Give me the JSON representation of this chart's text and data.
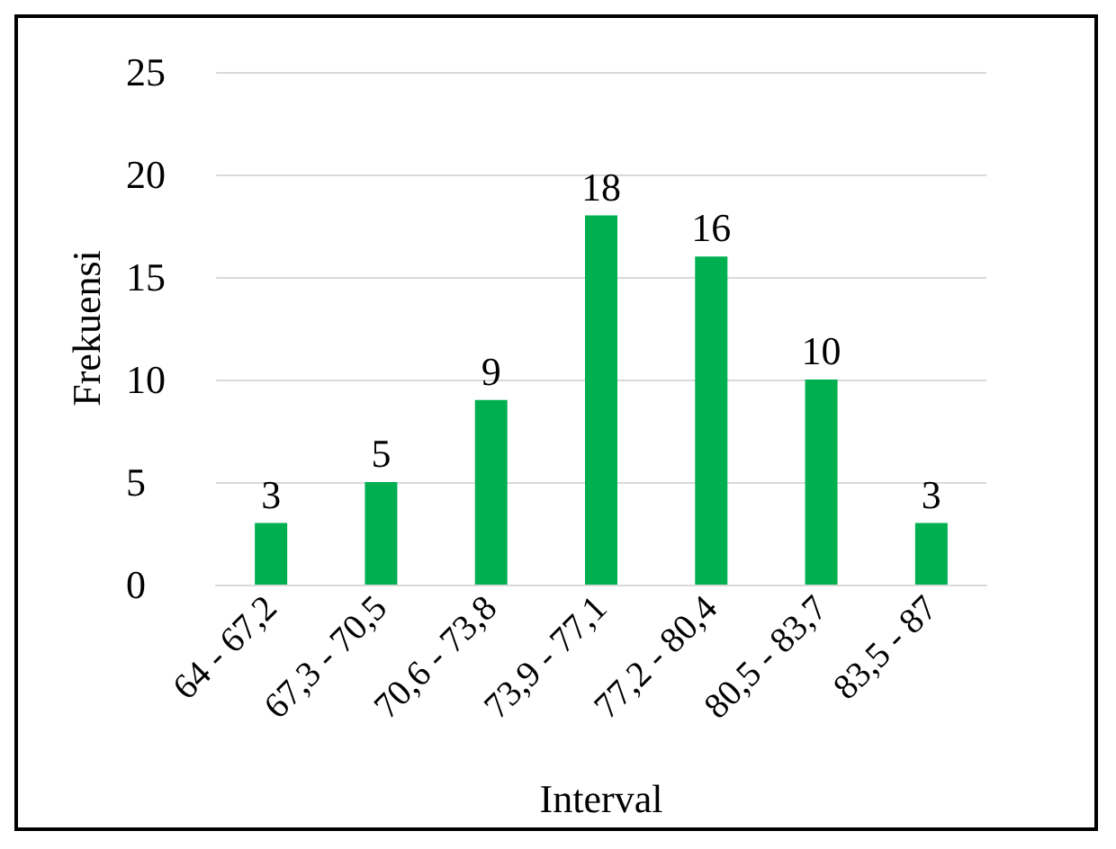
{
  "chart_data": {
    "type": "bar",
    "xlabel": "Interval",
    "ylabel": "Frekuensi",
    "categories": [
      "64 - 67,2",
      "67,3 - 70,5",
      "70,6 - 73,8",
      "73,9 - 77,1",
      "77,2 - 80,4",
      "80,5 - 83,7",
      "83,5 - 87"
    ],
    "values": [
      3,
      5,
      9,
      18,
      16,
      10,
      3
    ],
    "color": "#00b050",
    "ylim": [
      0,
      25
    ],
    "yticks": [
      0,
      5,
      10,
      15,
      20,
      25
    ],
    "grid": "y",
    "data_labels": true
  }
}
